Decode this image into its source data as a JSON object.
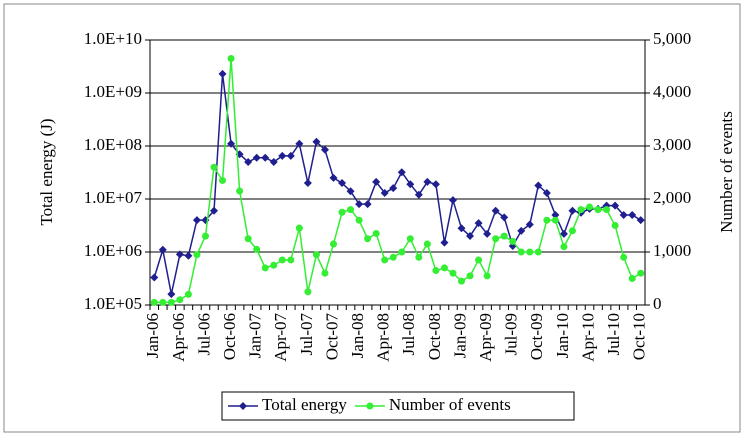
{
  "chart_data": {
    "type": "line",
    "ylabel": "Total energy (J)",
    "y2label": "Number of events",
    "yscale": "log",
    "grid": true,
    "legend": "bottom",
    "categories": [
      "Jan-06",
      null,
      null,
      "Apr-06",
      null,
      null,
      "Jul-06",
      null,
      null,
      "Oct-06",
      null,
      null,
      "Jan-07",
      null,
      null,
      "Apr-07",
      null,
      null,
      "Jul-07",
      null,
      null,
      "Oct-07",
      null,
      null,
      "Jan-08",
      null,
      null,
      "Apr-08",
      null,
      null,
      "Jul-08",
      null,
      null,
      "Oct-08",
      null,
      null,
      "Jan-09",
      null,
      null,
      "Apr-09",
      null,
      null,
      "Jul-09",
      null,
      null,
      "Oct-09",
      null,
      null,
      "Jan-10",
      null,
      null,
      "Apr-10",
      null,
      null,
      "Jul-10",
      null,
      null,
      "Oct-10"
    ],
    "ylim": [
      100000,
      10000000000
    ],
    "yticks": [
      {
        "value": 100000,
        "label": "1.0E+05"
      },
      {
        "value": 1000000,
        "label": "1.0E+06"
      },
      {
        "value": 10000000,
        "label": "1.0E+07"
      },
      {
        "value": 100000000,
        "label": "1.0E+08"
      },
      {
        "value": 1000000000,
        "label": "1.0E+09"
      },
      {
        "value": 10000000000,
        "label": "1.0E+10"
      }
    ],
    "y2lim": [
      0,
      5000
    ],
    "y2ticks": [
      0,
      {
        "value": 1000,
        "label": "1,000"
      },
      {
        "value": 2000,
        "label": "2,000"
      },
      {
        "value": 3000,
        "label": "3,000"
      },
      {
        "value": 4000,
        "label": "4,000"
      },
      {
        "value": 5000,
        "label": "5,000"
      }
    ],
    "series": [
      {
        "name": "Total energy",
        "color": "#1f1f8f",
        "marker": "diamond",
        "values": [
          330000,
          1100000,
          160000,
          900000,
          850000,
          4000000,
          4000000,
          6000000,
          2300000000,
          110000000,
          70000000,
          50000000,
          60000000,
          60000000,
          50000000,
          65000000,
          65000000,
          110000000,
          20000000,
          120000000,
          85000000,
          25000000,
          20000000,
          14000000,
          8000000,
          8000000,
          21000000,
          13000000,
          16000000,
          32000000,
          19000000,
          12000000,
          21000000,
          19000000,
          1500000,
          9500000,
          2800000,
          2000000,
          3500000,
          2200000,
          6000000,
          4500000,
          1300000,
          2500000,
          3300000,
          18000000,
          13000000,
          5000000,
          2200000,
          6000000,
          5500000,
          6500000,
          6500000,
          7500000,
          7500000,
          5000000,
          5000000,
          4000000
        ]
      },
      {
        "name": "Number of events",
        "color": "#33ee33",
        "marker": "circle",
        "axis": "y2",
        "values": [
          50,
          50,
          50,
          100,
          200,
          950,
          1300,
          2600,
          2350,
          4650,
          2150,
          1250,
          1050,
          700,
          750,
          850,
          850,
          1450,
          250,
          950,
          600,
          1150,
          1750,
          1800,
          1600,
          1250,
          1350,
          850,
          900,
          1000,
          1250,
          900,
          1150,
          650,
          700,
          600,
          450,
          550,
          850,
          550,
          1250,
          1300,
          1200,
          1000,
          1000,
          1000,
          1600,
          1600,
          1100,
          1400,
          1800,
          1850,
          1800,
          1800,
          1500,
          900,
          500,
          600
        ]
      }
    ]
  }
}
